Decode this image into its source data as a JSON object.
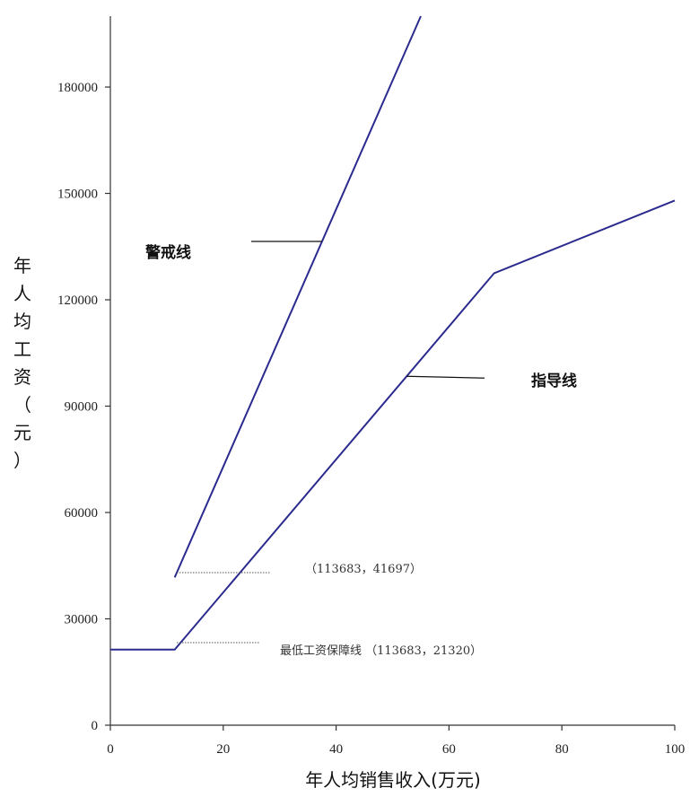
{
  "chart_data": {
    "type": "line",
    "xlabel": "年人均销售收入(万元)",
    "ylabel": "年人均工资（元）",
    "xlim": [
      0,
      100
    ],
    "ylim": [
      0,
      200000
    ],
    "x_ticks": [
      0,
      20,
      40,
      60,
      80,
      100
    ],
    "y_ticks": [
      0,
      30000,
      60000,
      90000,
      120000,
      150000,
      180000
    ],
    "grid": false,
    "line_color": "#2b2b8f",
    "series": [
      {
        "name": "警戒线",
        "points": [
          [
            11.4,
            41697
          ],
          [
            55,
            200000
          ]
        ]
      },
      {
        "name": "指导线",
        "points": [
          [
            0,
            21320
          ],
          [
            11.4,
            21320
          ],
          [
            68,
            127500
          ],
          [
            100,
            148000
          ]
        ]
      }
    ],
    "annotations": [
      {
        "text": "（113683，41697）"
      },
      {
        "text": "最低工资保障线  （113683，21320）"
      }
    ]
  }
}
